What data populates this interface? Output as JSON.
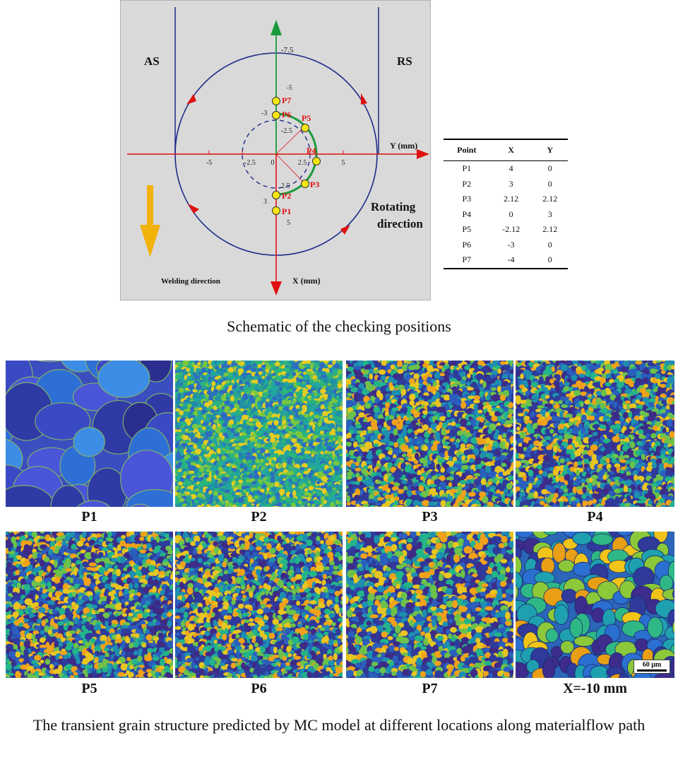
{
  "schematic": {
    "labels": {
      "as": "AS",
      "rs": "RS",
      "y_axis": "Y (mm)",
      "x_axis": "X (mm)",
      "welding_direction": "Welding direction",
      "rotating_line1": "Rotating",
      "rotating_line2": "direction"
    },
    "ticks": {
      "y_neg5": "-5",
      "y_neg25": "-2.5",
      "y_0": "0",
      "y_25": "2.5",
      "y_5": "5",
      "x_neg75": "-7.5",
      "x_neg5": "-5",
      "x_neg3": "-3",
      "x_neg25": "-2.5",
      "x_25": "2.5",
      "x_3": "3",
      "x_5": "5"
    },
    "points": [
      {
        "name": "P1",
        "x": 4,
        "y": 0
      },
      {
        "name": "P2",
        "x": 3,
        "y": 0
      },
      {
        "name": "P3",
        "x": 2.12,
        "y": 2.12
      },
      {
        "name": "P4",
        "x": 0,
        "y": 3
      },
      {
        "name": "P5",
        "x": -2.12,
        "y": 2.12
      },
      {
        "name": "P6",
        "x": -3,
        "y": 0
      },
      {
        "name": "P7",
        "x": -4,
        "y": 0
      }
    ],
    "colors": {
      "background": "#d9d9d9",
      "y_axis": "#e01010",
      "x_axis": "#1a9a3a",
      "circle": "#1d2a8a",
      "point_fill": "#f5e512",
      "point_label": "#e01010",
      "welding_arrow": "#f2b20c"
    }
  },
  "table": {
    "headers": [
      "Point",
      "X",
      "Y"
    ],
    "rows": [
      [
        "P1",
        "4",
        "0"
      ],
      [
        "P2",
        "3",
        "0"
      ],
      [
        "P3",
        "2.12",
        "2.12"
      ],
      [
        "P4",
        "0",
        "3"
      ],
      [
        "P5",
        "-2.12",
        "2.12"
      ],
      [
        "P6",
        "-3",
        "0"
      ],
      [
        "P7",
        "-4",
        "0"
      ]
    ]
  },
  "captions": {
    "schematic": "Schematic of the checking positions",
    "grains": "The transient grain structure predicted by MC model at different locations along materialflow path"
  },
  "panels": [
    {
      "label": "P1"
    },
    {
      "label": "P2"
    },
    {
      "label": "P3"
    },
    {
      "label": "P4"
    },
    {
      "label": "P5"
    },
    {
      "label": "P6"
    },
    {
      "label": "P7"
    },
    {
      "label": "X=-10 mm"
    }
  ],
  "scale_bar": "60 μm"
}
